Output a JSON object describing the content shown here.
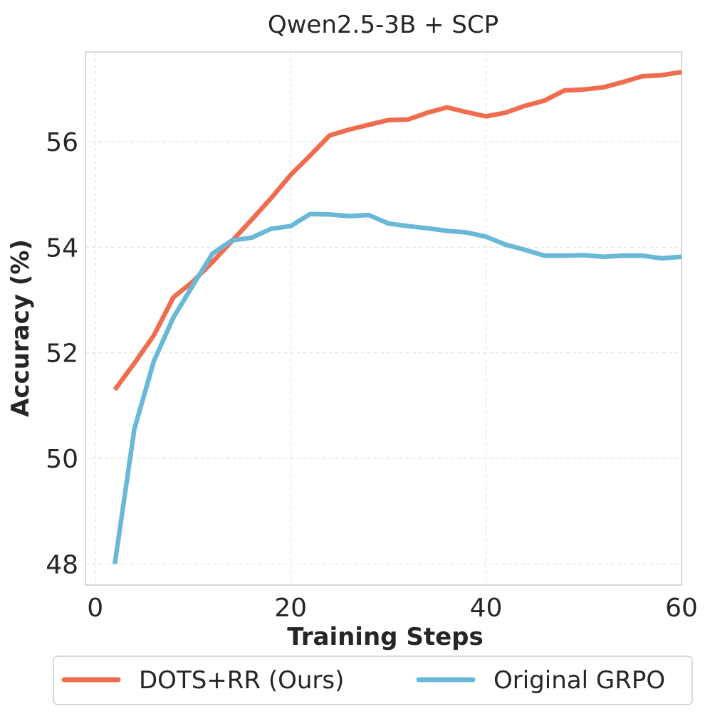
{
  "chart_data": {
    "type": "line",
    "title": "Qwen2.5-3B + SCP",
    "xlabel": "Training Steps",
    "ylabel": "Accuracy (%)",
    "xlim": [
      -1,
      60
    ],
    "ylim": [
      47.6,
      57.7
    ],
    "xticks": [
      0,
      20,
      40,
      60
    ],
    "yticks": [
      48,
      50,
      52,
      54,
      56
    ],
    "grid": true,
    "legend_position": "bottom-center",
    "series": [
      {
        "name": "DOTS+RR (Ours)",
        "color": "#f06c4f",
        "x": [
          2,
          4,
          6,
          8,
          10,
          12,
          14,
          16,
          18,
          20,
          22,
          24,
          26,
          28,
          30,
          32,
          34,
          36,
          38,
          40,
          42,
          44,
          46,
          48,
          50,
          52,
          54,
          56,
          58,
          60
        ],
        "values": [
          51.3,
          51.8,
          52.33,
          53.05,
          53.35,
          53.72,
          54.12,
          54.52,
          54.93,
          55.37,
          55.74,
          56.12,
          56.23,
          56.32,
          56.41,
          56.42,
          56.55,
          56.65,
          56.56,
          56.48,
          56.55,
          56.68,
          56.78,
          56.97,
          56.99,
          57.03,
          57.13,
          57.24,
          57.26,
          57.32
        ]
      },
      {
        "name": "Original GRPO",
        "color": "#6ab8d8",
        "x": [
          2,
          4,
          6,
          8,
          10,
          12,
          14,
          16,
          18,
          20,
          22,
          24,
          26,
          28,
          30,
          32,
          34,
          36,
          38,
          40,
          42,
          44,
          46,
          48,
          50,
          52,
          54,
          56,
          58,
          60
        ],
        "values": [
          48.0,
          50.55,
          51.84,
          52.67,
          53.28,
          53.88,
          54.13,
          54.18,
          54.35,
          54.4,
          54.63,
          54.62,
          54.59,
          54.61,
          54.45,
          54.4,
          54.36,
          54.31,
          54.28,
          54.2,
          54.05,
          53.95,
          53.84,
          53.84,
          53.85,
          53.82,
          53.84,
          53.84,
          53.79,
          53.82
        ]
      }
    ]
  }
}
